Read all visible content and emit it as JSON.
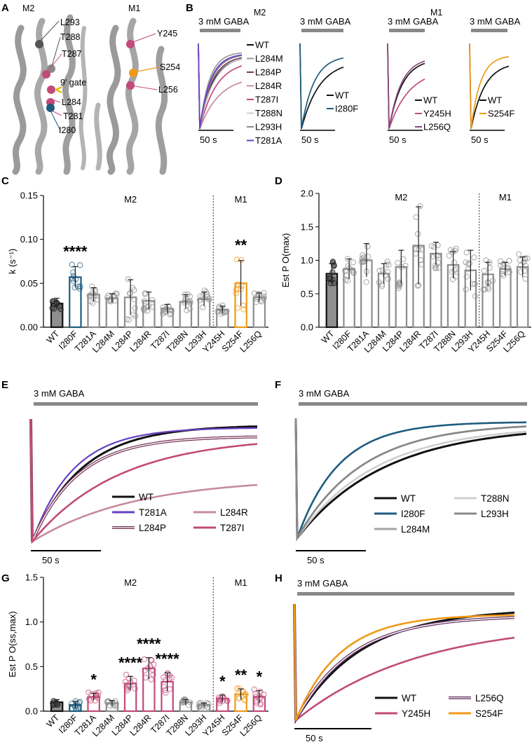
{
  "colors": {
    "black": "#111111",
    "blue": "#1e5c7f",
    "pink": "#c24a79",
    "lightpink": "#d6a0b4",
    "purple": "#6640c2",
    "orange": "#f09a18",
    "gray": "#8c8c8c",
    "lightgray": "#c6c6c6",
    "darkgray": "#555555"
  },
  "panel_letters": {
    "a": "A",
    "b": "B",
    "c": "C",
    "d": "D",
    "e": "E",
    "f": "F",
    "g": "G",
    "h": "H"
  },
  "panelA": {
    "m2_title": "M2",
    "m1_title": "M1",
    "m2_labels": [
      "L293",
      "T288",
      "T287",
      "9' gate",
      "L284",
      "T281",
      "I280"
    ],
    "m1_labels": [
      "Y245",
      "S254",
      "L256"
    ]
  },
  "panelB": {
    "m2_title": "M2",
    "m1_title": "M1",
    "stimulus": "3 mM GABA",
    "scale": "50 s",
    "legend1": [
      "WT",
      "L284M",
      "L284P",
      "L284R",
      "T287I",
      "T288N",
      "L293H",
      "T281A"
    ],
    "legend2": [
      "WT",
      "I280F"
    ],
    "legend3": [
      "WT",
      "Y245H",
      "L256Q"
    ],
    "legend4": [
      "WT",
      "S254F"
    ]
  },
  "panelE": {
    "stimulus": "3 mM GABA",
    "scale": "50 s",
    "legend": [
      "WT",
      "T281A",
      "L284P",
      "L284R",
      "T287I"
    ]
  },
  "panelF": {
    "stimulus": "3 mM GABA",
    "scale": "50 s",
    "legend": [
      "WT",
      "I280F",
      "L284M",
      "T288N",
      "L293H"
    ]
  },
  "panelH": {
    "stimulus": "3 mM GABA",
    "scale": "50 s",
    "legend": [
      "WT",
      "Y245H",
      "L256Q",
      "S254F"
    ]
  },
  "chart_data": [
    {
      "panel": "C",
      "type": "bar",
      "ylabel": "k (s⁻¹)",
      "ylim": [
        0,
        0.15
      ],
      "yticks": [
        "0.00",
        "0.05",
        "0.10",
        "0.15"
      ],
      "group_labels": [
        "M2",
        "M1"
      ],
      "categories": [
        "WT",
        "I280F",
        "T281A",
        "L284M",
        "L284P",
        "L284R",
        "T287I",
        "T288N",
        "L293H",
        "Y245H",
        "S254F",
        "L256Q"
      ],
      "values": [
        0.027,
        0.057,
        0.037,
        0.033,
        0.034,
        0.03,
        0.021,
        0.029,
        0.032,
        0.02,
        0.05,
        0.034
      ],
      "errors": [
        0.006,
        0.012,
        0.008,
        0.005,
        0.02,
        0.01,
        0.005,
        0.008,
        0.008,
        0.004,
        0.026,
        0.005
      ],
      "significance": [
        "",
        "****",
        "",
        "",
        "",
        "",
        "",
        "",
        "",
        "",
        "**",
        ""
      ]
    },
    {
      "panel": "D",
      "type": "bar",
      "ylabel": "Est P O(max)",
      "ylim": [
        0,
        2.0
      ],
      "yticks": [
        "0.0",
        "0.5",
        "1.0",
        "1.5",
        "2.0"
      ],
      "group_labels": [
        "M2",
        "M1"
      ],
      "categories": [
        "WT",
        "I280F",
        "T281A",
        "L284M",
        "L284P",
        "L284R",
        "T287I",
        "T288N",
        "L293H",
        "Y245H",
        "S254F",
        "L256Q"
      ],
      "values": [
        0.8,
        0.87,
        1.0,
        0.8,
        0.9,
        1.22,
        1.1,
        0.93,
        0.85,
        0.79,
        0.87,
        0.9
      ],
      "errors": [
        0.15,
        0.15,
        0.25,
        0.15,
        0.25,
        0.58,
        0.17,
        0.2,
        0.3,
        0.18,
        0.1,
        0.15
      ],
      "significance": [
        "",
        "",
        "",
        "",
        "",
        "",
        "",
        "",
        "",
        "",
        "",
        ""
      ]
    },
    {
      "panel": "G",
      "type": "bar",
      "ylabel": "Est P O(ss,max)",
      "ylim": [
        0,
        1.5
      ],
      "yticks": [
        "0.0",
        "0.5",
        "1.0",
        "1.5"
      ],
      "group_labels": [
        "M2",
        "M1"
      ],
      "categories": [
        "WT",
        "I280F",
        "T281A",
        "L284M",
        "L284P",
        "L284R",
        "T287I",
        "T288N",
        "L293H",
        "Y245H",
        "S254F",
        "L256Q"
      ],
      "values": [
        0.1,
        0.07,
        0.16,
        0.09,
        0.31,
        0.48,
        0.33,
        0.1,
        0.07,
        0.14,
        0.19,
        0.16
      ],
      "errors": [
        0.03,
        0.04,
        0.04,
        0.03,
        0.08,
        0.12,
        0.1,
        0.03,
        0.02,
        0.04,
        0.06,
        0.07
      ],
      "significance": [
        "",
        "",
        "*",
        "",
        "****",
        "****",
        "****",
        "",
        "",
        "*",
        "**",
        "*"
      ]
    },
    {
      "panel": "E",
      "type": "line",
      "series": [
        {
          "name": "WT",
          "tau": 22,
          "plateau": 0.95
        },
        {
          "name": "T281A",
          "tau": 18,
          "plateau": 0.93
        },
        {
          "name": "L284P",
          "tau": 20,
          "plateau": 0.86
        },
        {
          "name": "L284R",
          "tau": 45,
          "plateau": 0.52
        },
        {
          "name": "T287I",
          "tau": 38,
          "plateau": 0.86
        }
      ]
    },
    {
      "panel": "F",
      "type": "line",
      "series": [
        {
          "name": "WT",
          "tau": 38,
          "plateau": 0.94
        },
        {
          "name": "I280F",
          "tau": 18,
          "plateau": 0.97
        },
        {
          "name": "L284M",
          "tau": 28,
          "plateau": 0.96
        },
        {
          "name": "T288N",
          "tau": 34,
          "plateau": 0.94
        },
        {
          "name": "L293H",
          "tau": 28,
          "plateau": 0.96
        }
      ]
    },
    {
      "panel": "H",
      "type": "line",
      "series": [
        {
          "name": "WT",
          "tau": 30,
          "plateau": 0.96
        },
        {
          "name": "Y245H",
          "tau": 55,
          "plateau": 0.85
        },
        {
          "name": "L256Q",
          "tau": 25,
          "plateau": 0.9
        },
        {
          "name": "S254F",
          "tau": 20,
          "plateau": 0.91
        }
      ]
    }
  ]
}
